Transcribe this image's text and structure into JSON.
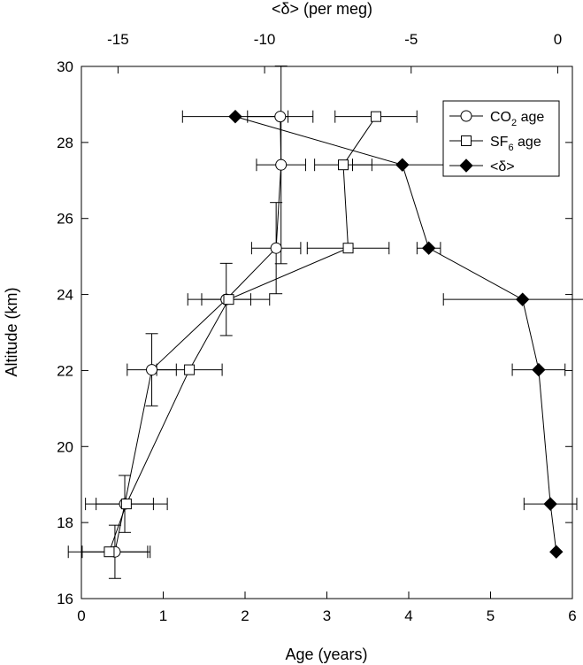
{
  "chart_data": {
    "type": "scatter",
    "xlabel": "Age (years)",
    "x2label": "<δ> (per meg)",
    "ylabel": "Altitude (km)",
    "xlim": [
      0,
      6
    ],
    "x2lim": [
      -16.25,
      0.5
    ],
    "ylim": [
      16,
      30
    ],
    "xticks": [
      "0",
      "1",
      "2",
      "3",
      "4",
      "5",
      "6"
    ],
    "x2ticks": [
      "-15",
      "-10",
      "-5",
      "0"
    ],
    "yticks": [
      "16",
      "18",
      "20",
      "22",
      "24",
      "26",
      "28",
      "30"
    ],
    "grid": false,
    "legend_position": "top-right",
    "series": [
      {
        "name": "CO2 age",
        "legend_main": "CO",
        "legend_sub": "2",
        "legend_suffix": " age",
        "marker": "circle-open",
        "axis": "bottom",
        "points": [
          {
            "x": 2.43,
            "y": 28.68,
            "xerr": 0.4,
            "yerr": 0
          },
          {
            "x": 2.44,
            "y": 27.41,
            "xerr": 0.3,
            "yerr": 2.6
          },
          {
            "x": 2.38,
            "y": 25.22,
            "xerr": 0.3,
            "yerr": 1.2
          },
          {
            "x": 1.77,
            "y": 23.87,
            "xerr": 0.3,
            "yerr": 0.95
          },
          {
            "x": 0.86,
            "y": 22.02,
            "xerr": 0.3,
            "yerr": 0.95
          },
          {
            "x": 0.53,
            "y": 18.49,
            "xerr": 0.35,
            "yerr": 0.75
          },
          {
            "x": 0.41,
            "y": 17.23,
            "xerr": 0.4,
            "yerr": 0.7
          }
        ]
      },
      {
        "name": "SF6 age",
        "legend_main": "SF",
        "legend_sub": "6",
        "legend_suffix": " age",
        "marker": "square-open",
        "axis": "bottom",
        "points": [
          {
            "x": 3.6,
            "y": 28.68,
            "xerr": 0.5,
            "yerr": 0
          },
          {
            "x": 3.2,
            "y": 27.41,
            "xerr": 0.35,
            "yerr": 0
          },
          {
            "x": 3.26,
            "y": 25.22,
            "xerr": 0.5,
            "yerr": 0
          },
          {
            "x": 1.8,
            "y": 23.87,
            "xerr": 0.5,
            "yerr": 0
          },
          {
            "x": 1.32,
            "y": 22.02,
            "xerr": 0.4,
            "yerr": 0
          },
          {
            "x": 0.55,
            "y": 18.49,
            "xerr": 0.5,
            "yerr": 0
          },
          {
            "x": 0.34,
            "y": 17.23,
            "xerr": 0.5,
            "yerr": 0
          }
        ]
      },
      {
        "name": "<δ>",
        "marker": "diamond-filled",
        "axis": "top",
        "points": [
          {
            "x": -11.0,
            "y": 28.68,
            "xerr": 1.8
          },
          {
            "x": -5.3,
            "y": 27.41,
            "xerr": 1.7
          },
          {
            "x": -4.4,
            "y": 25.22,
            "xerr": 0.4
          },
          {
            "x": -1.2,
            "y": 23.87,
            "xerr": 2.7
          },
          {
            "x": -0.65,
            "y": 22.02,
            "xerr": 0.9
          },
          {
            "x": -0.25,
            "y": 18.49,
            "xerr": 0.9
          },
          {
            "x": -0.05,
            "y": 17.23,
            "xerr": 0
          }
        ]
      }
    ]
  }
}
